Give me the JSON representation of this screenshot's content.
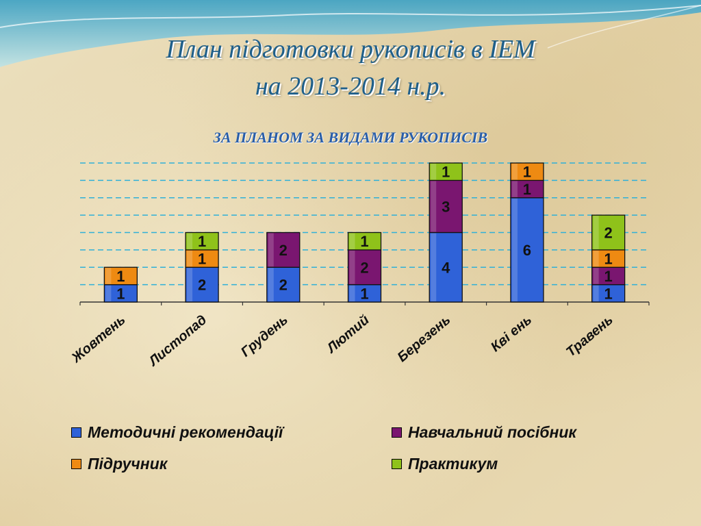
{
  "title": {
    "line1": "План підготовки рукописів в ІЕМ",
    "line2": "на 2013-2014 н.р."
  },
  "subtitle": "ЗА ПЛАНОМ  ЗА ВИДАМИ РУКОПИСІВ",
  "legend": [
    {
      "name": "Методичні рекомендації",
      "color": "#2f62d8"
    },
    {
      "name": "Навчальний посібник",
      "color": "#7a1670"
    },
    {
      "name": "Підручник",
      "color": "#ee8a12"
    },
    {
      "name": "Практикум",
      "color": "#8fc21a"
    }
  ],
  "chart_data": {
    "type": "bar",
    "stacked": true,
    "categories": [
      "Жовтень",
      "Листопад",
      "Грудень",
      "Лютий",
      "Березень",
      "Кві ень",
      "Травень"
    ],
    "series": [
      {
        "name": "Методичні рекомендації",
        "color": "#2f62d8",
        "values": [
          1,
          2,
          2,
          1,
          4,
          6,
          1
        ]
      },
      {
        "name": "Навчальний посібник",
        "color": "#7a1670",
        "values": [
          0,
          0,
          2,
          2,
          3,
          1,
          1
        ]
      },
      {
        "name": "Підручник",
        "color": "#ee8a12",
        "values": [
          1,
          1,
          0,
          0,
          0,
          1,
          1
        ]
      },
      {
        "name": "Практикум",
        "color": "#8fc21a",
        "values": [
          0,
          1,
          0,
          1,
          1,
          0,
          2
        ]
      }
    ],
    "ylim": [
      0,
      8
    ],
    "grid": true,
    "legend_position": "bottom"
  }
}
